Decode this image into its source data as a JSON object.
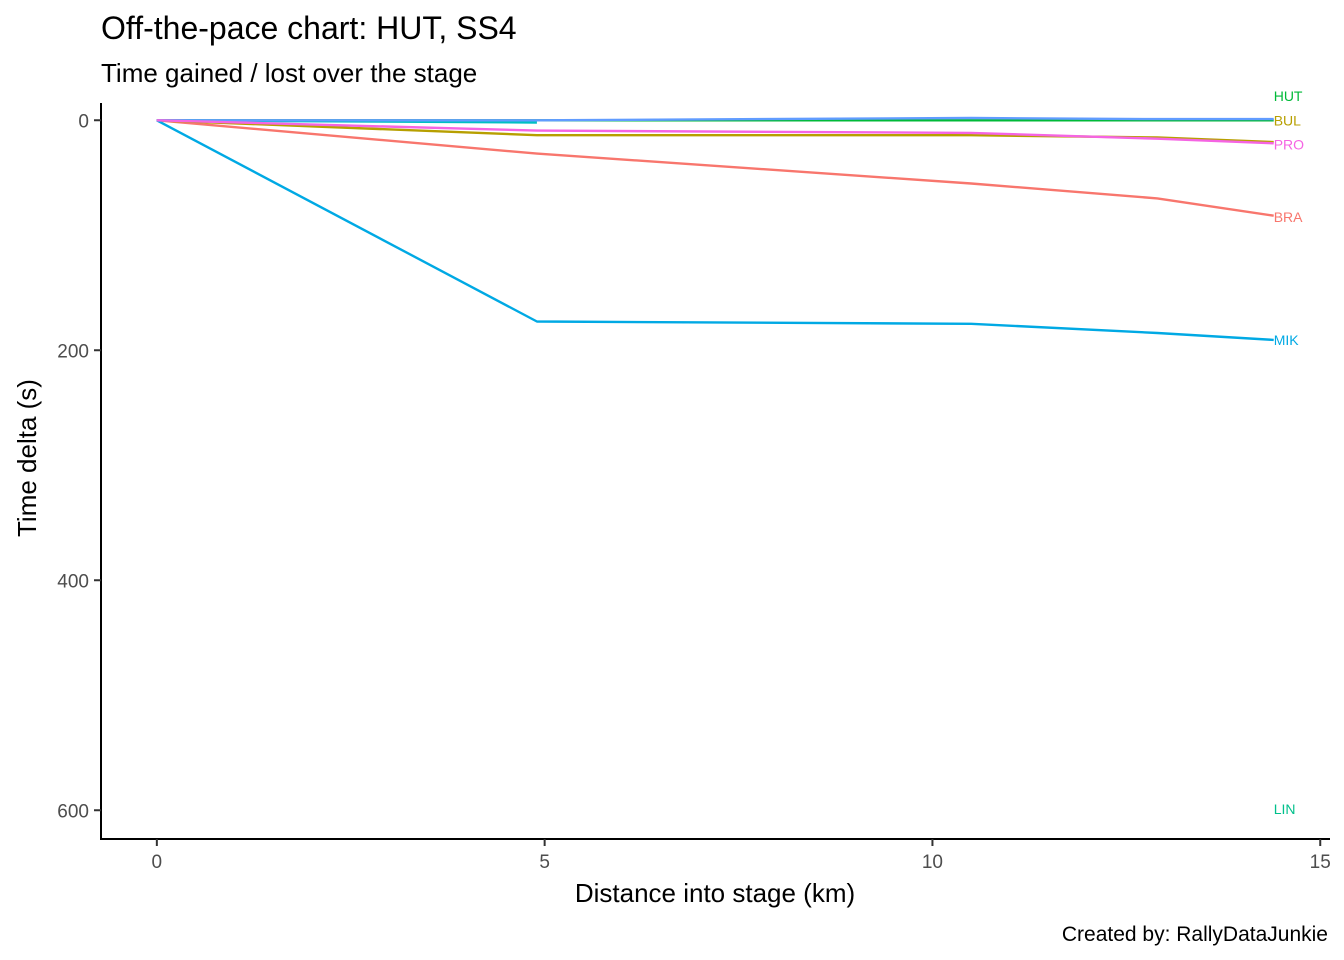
{
  "chart_data": {
    "type": "line",
    "title": "Off-the-pace chart: HUT, SS4",
    "subtitle": "Time gained / lost over the stage",
    "xlabel": "Distance into stage (km)",
    "ylabel": "Time delta (s)",
    "caption": "Created by: RallyDataJunkie",
    "xlim": [
      -0.72,
      15.1
    ],
    "ylim": [
      -15,
      625
    ],
    "y_reversed": true,
    "x_ticks": [
      0,
      5,
      10,
      15
    ],
    "y_ticks": [
      0,
      200,
      400,
      600
    ],
    "grid": false,
    "legend": "none (series labelled at line ends)",
    "series": [
      {
        "name": "BRA",
        "color": "#F8766D",
        "x": [
          0,
          4.9,
          10.5,
          12.9,
          14.4
        ],
        "y": [
          0,
          29,
          55,
          68,
          83
        ]
      },
      {
        "name": "BUL",
        "color": "#B79F00",
        "x": [
          0,
          4.9,
          10.5,
          12.9,
          14.4
        ],
        "y": [
          0,
          13,
          13,
          15,
          19
        ]
      },
      {
        "name": "HUT",
        "color": "#00BA38",
        "x": [
          0,
          4.9,
          10.5,
          12.9,
          14.4
        ],
        "y": [
          0,
          0,
          0,
          0,
          0
        ]
      },
      {
        "name": "LIN",
        "color": "#00BFC4",
        "x": [
          0,
          4.9
        ],
        "y": [
          0,
          2
        ]
      },
      {
        "name": "MIK",
        "color": "#00A9E4",
        "x": [
          0,
          4.9,
          10.5,
          12.9,
          14.4
        ],
        "y": [
          0,
          175,
          177,
          185,
          191
        ]
      },
      {
        "name": "",
        "color": "#619CFF",
        "x": [
          0,
          4.9,
          10.5,
          12.9,
          14.4
        ],
        "y": [
          0,
          0,
          -2,
          -1,
          -1
        ]
      },
      {
        "name": "PRO",
        "color": "#F564E3",
        "x": [
          0,
          4.9,
          10.5,
          12.9,
          14.4
        ],
        "y": [
          0,
          9,
          11,
          16,
          20
        ]
      }
    ],
    "end_labels": [
      {
        "text": "HUT",
        "color": "#00BA38",
        "x": 14.4,
        "y": -21
      },
      {
        "text": "BUL",
        "color": "#B79F00",
        "x": 14.4,
        "y": 0
      },
      {
        "text": "PRO",
        "color": "#F564E3",
        "x": 14.4,
        "y": 21
      },
      {
        "text": "BRA",
        "color": "#F8766D",
        "x": 14.4,
        "y": 84
      },
      {
        "text": "MIK",
        "color": "#00A9E4",
        "x": 14.4,
        "y": 191
      },
      {
        "text": "LIN",
        "color": "#00C08B",
        "x": 14.4,
        "y": 599
      }
    ]
  }
}
